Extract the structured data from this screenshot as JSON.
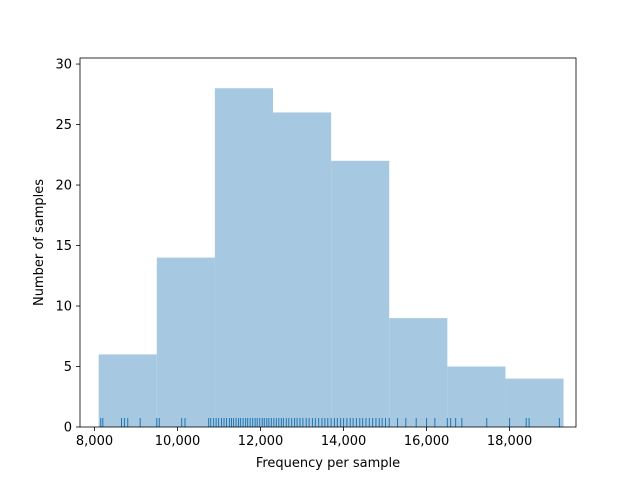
{
  "chart_data": {
    "type": "bar",
    "subtype": "histogram",
    "xlabel": "Frequency per sample",
    "ylabel": "Number of samples",
    "xlim": [
      7650,
      19600
    ],
    "ylim": [
      0,
      30.5
    ],
    "x_ticks": [
      {
        "value": 8000,
        "label": "8,000"
      },
      {
        "value": 10000,
        "label": "10,000"
      },
      {
        "value": 12000,
        "label": "12,000"
      },
      {
        "value": 14000,
        "label": "14,000"
      },
      {
        "value": 16000,
        "label": "16,000"
      },
      {
        "value": 18000,
        "label": "18,000"
      }
    ],
    "y_ticks": [
      {
        "value": 0,
        "label": "0"
      },
      {
        "value": 5,
        "label": "5"
      },
      {
        "value": 10,
        "label": "10"
      },
      {
        "value": 15,
        "label": "15"
      },
      {
        "value": 20,
        "label": "20"
      },
      {
        "value": 25,
        "label": "25"
      },
      {
        "value": 30,
        "label": "30"
      }
    ],
    "bins": [
      {
        "start": 8100,
        "end": 9500,
        "count": 6
      },
      {
        "start": 9500,
        "end": 10900,
        "count": 14
      },
      {
        "start": 10900,
        "end": 12300,
        "count": 28
      },
      {
        "start": 12300,
        "end": 13700,
        "count": 26
      },
      {
        "start": 13700,
        "end": 15100,
        "count": 22
      },
      {
        "start": 15100,
        "end": 16500,
        "count": 9
      },
      {
        "start": 16500,
        "end": 17900,
        "count": 5
      },
      {
        "start": 17900,
        "end": 19300,
        "count": 4
      }
    ],
    "rug": [
      8150,
      8200,
      8650,
      8720,
      8800,
      9100,
      9500,
      9560,
      10100,
      10180,
      10750,
      10800,
      10870,
      10930,
      10990,
      11060,
      11120,
      11180,
      11250,
      11300,
      11350,
      11410,
      11470,
      11520,
      11580,
      11640,
      11690,
      11750,
      11810,
      11870,
      11920,
      11980,
      12040,
      12090,
      12150,
      12200,
      12260,
      12320,
      12380,
      12440,
      12500,
      12550,
      12620,
      12680,
      12750,
      12820,
      12880,
      12950,
      13020,
      13100,
      13170,
      13250,
      13320,
      13400,
      13480,
      13550,
      13620,
      13700,
      13780,
      13850,
      13930,
      14000,
      14080,
      14160,
      14230,
      14310,
      14390,
      14460,
      14540,
      14620,
      14700,
      14780,
      14860,
      14930,
      15010,
      15100,
      15300,
      15500,
      15750,
      16000,
      16200,
      16500,
      16580,
      16700,
      16850,
      17450,
      18000,
      18400,
      18470,
      19200
    ],
    "bar_color": "#a6c8e0",
    "rug_color": "#1f77b4",
    "grid": false,
    "legend": "none"
  }
}
